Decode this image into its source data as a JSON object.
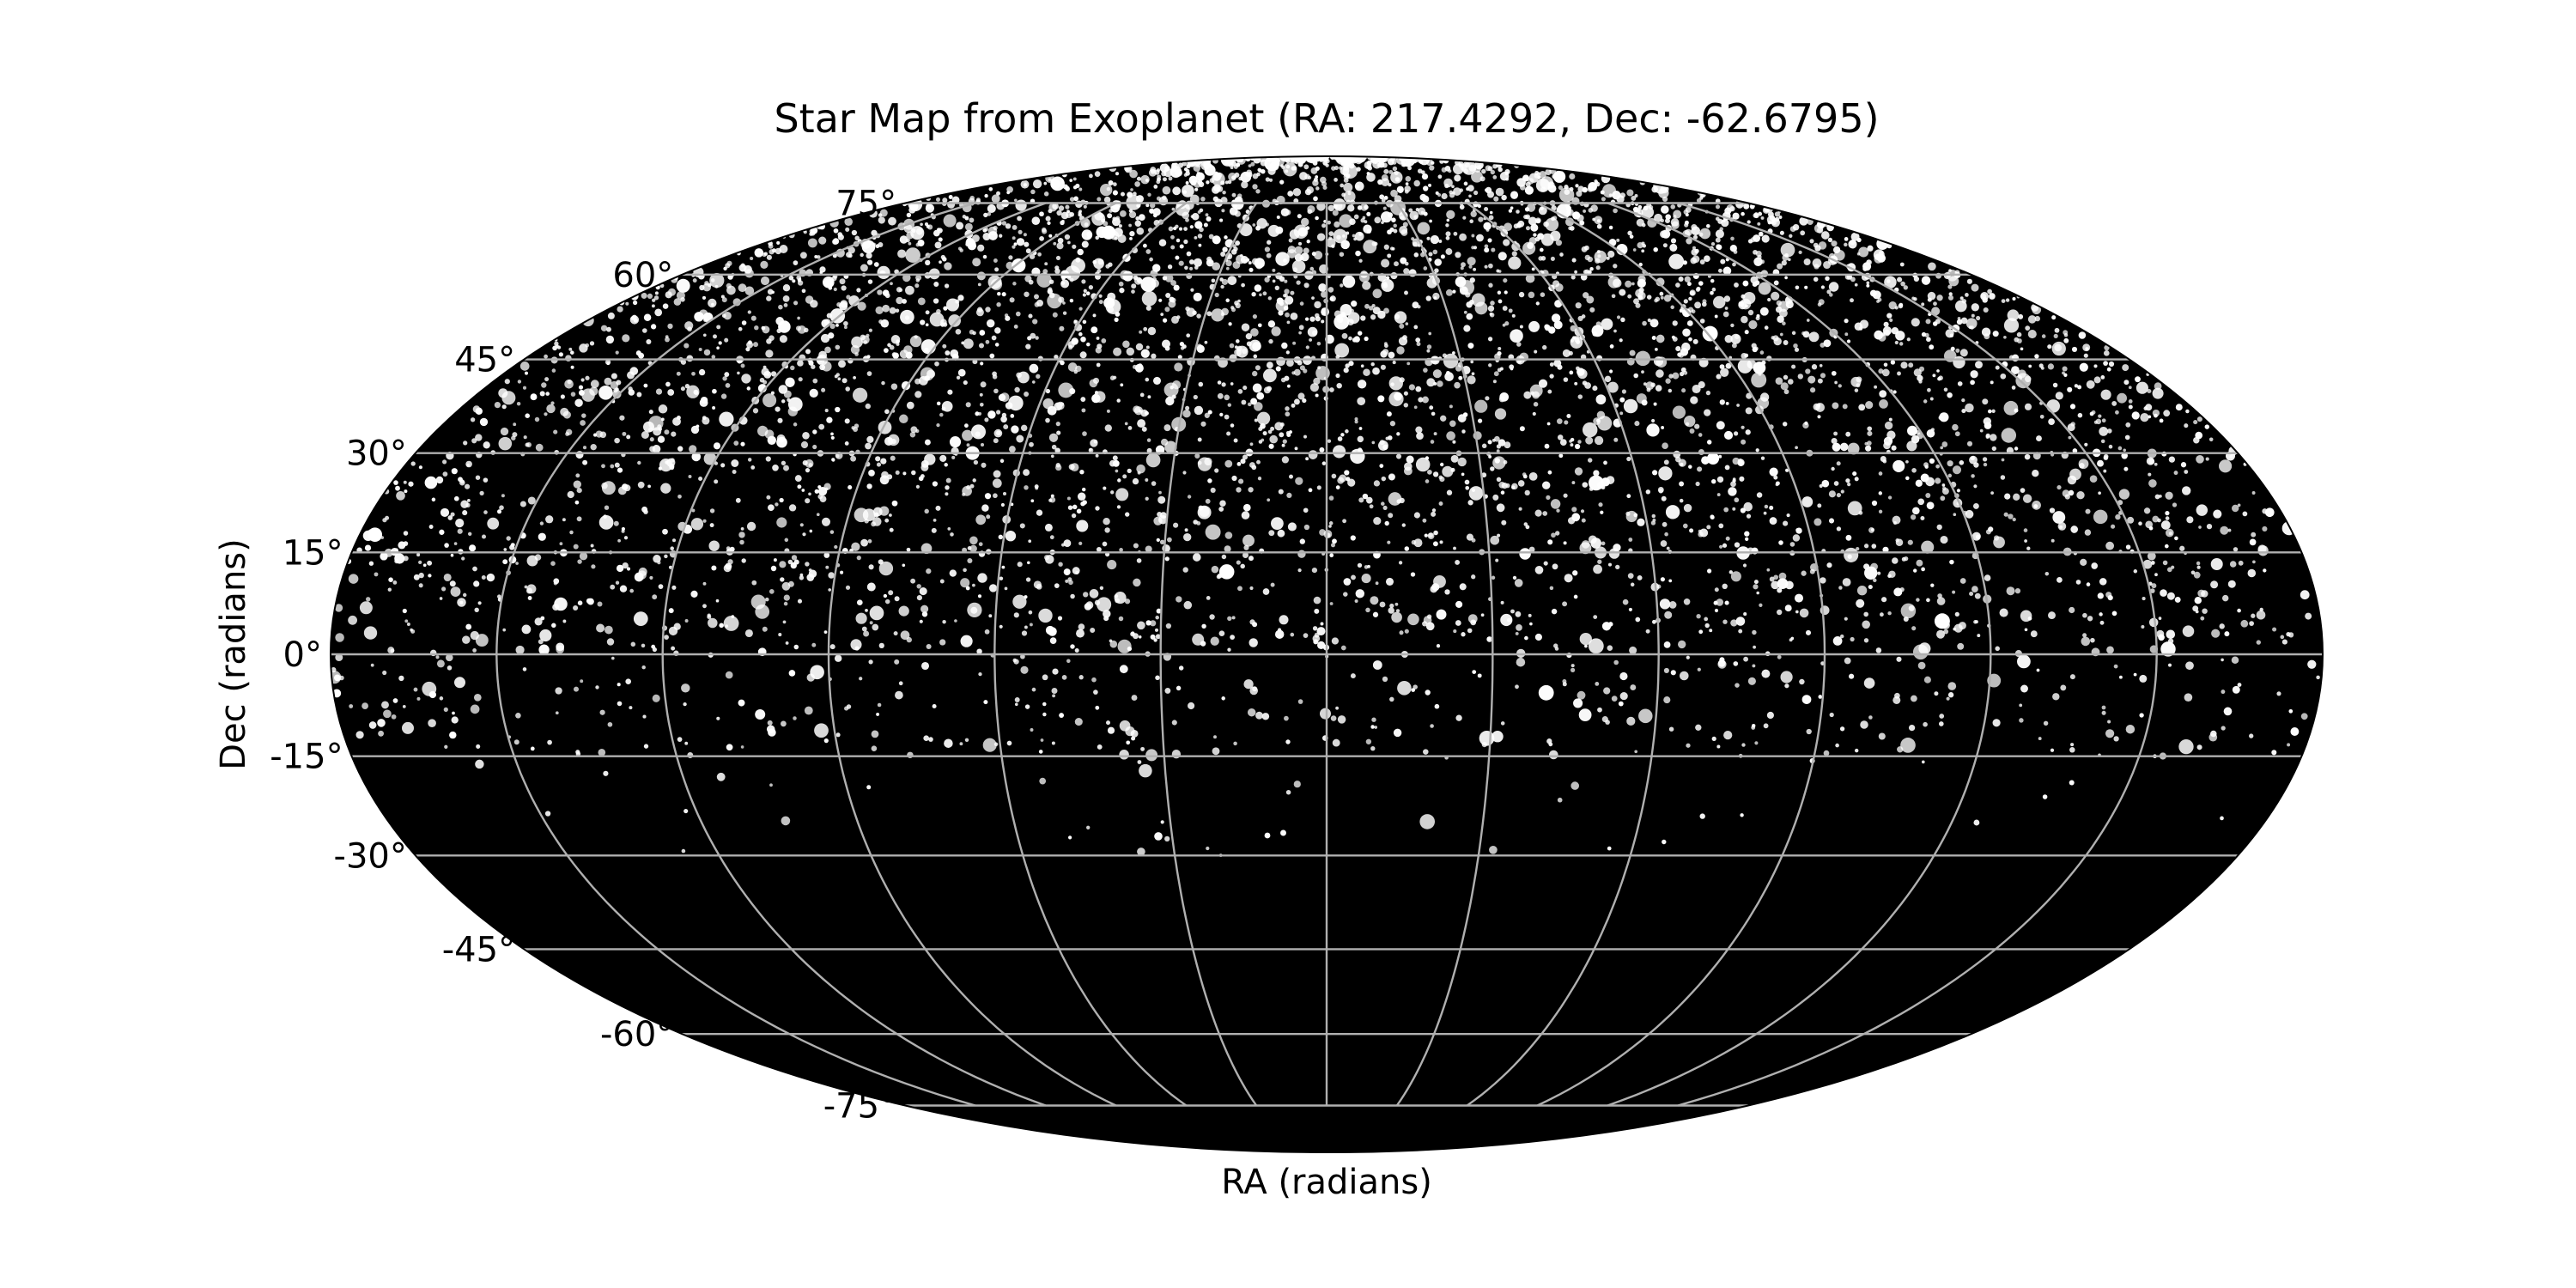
{
  "chart_data": {
    "type": "scatter",
    "projection": "mollweide",
    "title": "Star Map from Exoplanet (RA: 217.4292, Dec: -62.6795)",
    "xlabel": "RA (radians)",
    "ylabel": "Dec (radians)",
    "grid": true,
    "x_range_radians": [
      -3.14159,
      3.14159
    ],
    "y_range_radians": [
      -1.5708,
      1.5708
    ],
    "background_color": "#000000",
    "star_color": "#ffffff",
    "grid_color": "#b0b0b0",
    "meridian_step_degrees": 30,
    "y_ticks": [
      {
        "value": 75,
        "label": "75°"
      },
      {
        "value": 60,
        "label": "60°"
      },
      {
        "value": 45,
        "label": "45°"
      },
      {
        "value": 30,
        "label": "30°"
      },
      {
        "value": 15,
        "label": "15°"
      },
      {
        "value": 0,
        "label": "0°"
      },
      {
        "value": -15,
        "label": "-15°"
      },
      {
        "value": -30,
        "label": "-30°"
      },
      {
        "value": -45,
        "label": "-45°"
      },
      {
        "value": -60,
        "label": "-60°"
      },
      {
        "value": -75,
        "label": "-75°"
      }
    ],
    "star_density_bands_degrees": [
      {
        "dec_min": 75,
        "dec_max": 90,
        "relative_density": 6.0
      },
      {
        "dec_min": 60,
        "dec_max": 75,
        "relative_density": 3.2
      },
      {
        "dec_min": 45,
        "dec_max": 60,
        "relative_density": 2.2
      },
      {
        "dec_min": 30,
        "dec_max": 45,
        "relative_density": 1.6
      },
      {
        "dec_min": 15,
        "dec_max": 30,
        "relative_density": 1.3
      },
      {
        "dec_min": 0,
        "dec_max": 15,
        "relative_density": 1.0
      },
      {
        "dec_min": -15,
        "dec_max": 0,
        "relative_density": 0.5
      },
      {
        "dec_min": -30,
        "dec_max": -15,
        "relative_density": 0.06
      },
      {
        "dec_min": -90,
        "dec_max": -30,
        "relative_density": 0.0
      }
    ],
    "approx_star_count": 5200
  }
}
